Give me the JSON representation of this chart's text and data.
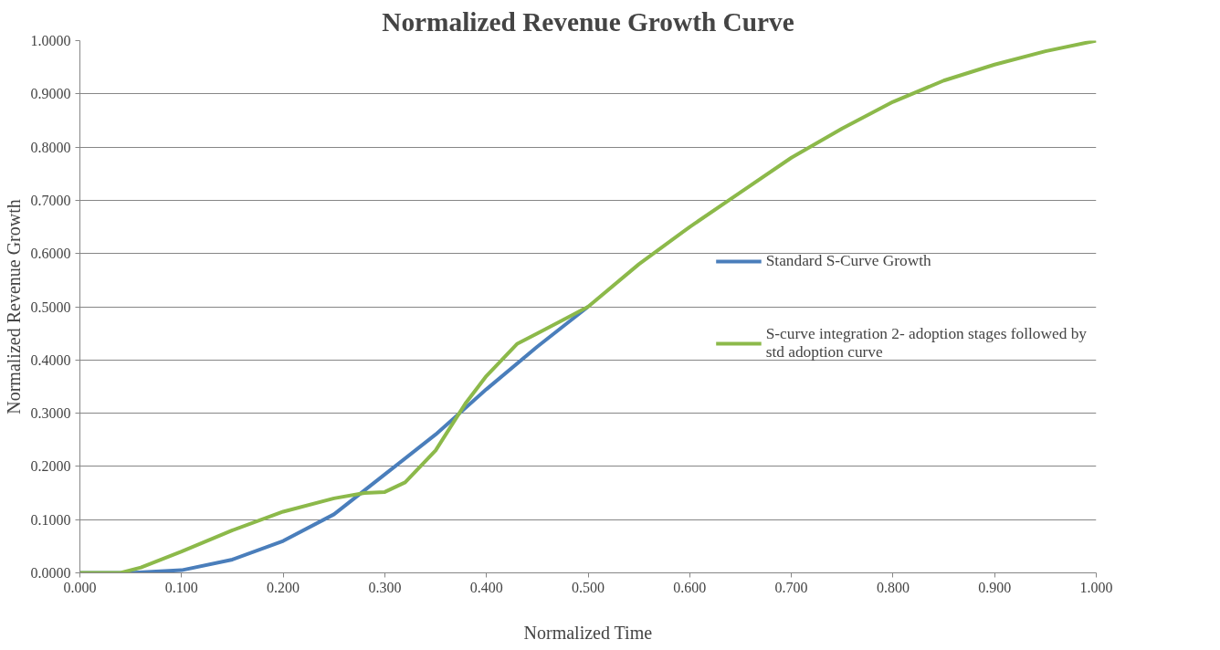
{
  "chart_data": {
    "type": "line",
    "title": "Normalized Revenue Growth Curve",
    "xlabel": "Normalized Time",
    "ylabel": "Normalized Revenue Growth",
    "series": [
      {
        "name": "Standard S-Curve Growth",
        "color": "#4a7ebb",
        "x": [
          0,
          0.05,
          0.1,
          0.15,
          0.2,
          0.25,
          0.3,
          0.35,
          0.4,
          0.45,
          0.5
        ],
        "values": [
          0,
          0,
          0.005,
          0.025,
          0.06,
          0.11,
          0.185,
          0.26,
          0.345,
          0.425,
          0.5
        ]
      },
      {
        "name": "S-curve integration 2- adoption stages followed by std adoption curve",
        "color": "#8cb94a",
        "x": [
          0,
          0.04,
          0.06,
          0.1,
          0.15,
          0.2,
          0.25,
          0.28,
          0.3,
          0.32,
          0.35,
          0.38,
          0.4,
          0.43,
          0.45,
          0.48,
          0.5,
          0.55,
          0.6,
          0.65,
          0.7,
          0.75,
          0.8,
          0.85,
          0.9,
          0.95,
          1.0
        ],
        "values": [
          0,
          0,
          0.01,
          0.04,
          0.08,
          0.115,
          0.14,
          0.15,
          0.152,
          0.17,
          0.23,
          0.32,
          0.37,
          0.43,
          0.45,
          0.48,
          0.5,
          0.58,
          0.65,
          0.715,
          0.78,
          0.835,
          0.885,
          0.925,
          0.955,
          0.98,
          1.0
        ]
      }
    ],
    "xlim": [
      0,
      1
    ],
    "ylim": [
      0,
      1
    ],
    "xticks": [
      {
        "value": 0,
        "label": "0.000"
      },
      {
        "value": 0.1,
        "label": "0.100"
      },
      {
        "value": 0.2,
        "label": "0.200"
      },
      {
        "value": 0.3,
        "label": "0.300"
      },
      {
        "value": 0.4,
        "label": "0.400"
      },
      {
        "value": 0.5,
        "label": "0.500"
      },
      {
        "value": 0.6,
        "label": "0.600"
      },
      {
        "value": 0.7,
        "label": "0.700"
      },
      {
        "value": 0.8,
        "label": "0.800"
      },
      {
        "value": 0.9,
        "label": "0.900"
      },
      {
        "value": 1,
        "label": "1.000"
      }
    ],
    "yticks": [
      {
        "value": 0,
        "label": "0.0000"
      },
      {
        "value": 0.1,
        "label": "0.1000"
      },
      {
        "value": 0.2,
        "label": "0.2000"
      },
      {
        "value": 0.3,
        "label": "0.3000"
      },
      {
        "value": 0.4,
        "label": "0.4000"
      },
      {
        "value": 0.5,
        "label": "0.5000"
      },
      {
        "value": 0.6,
        "label": "0.6000"
      },
      {
        "value": 0.7,
        "label": "0.7000"
      },
      {
        "value": 0.8,
        "label": "0.8000"
      },
      {
        "value": 0.9,
        "label": "0.9000"
      },
      {
        "value": 1,
        "label": "1.0000"
      }
    ],
    "grid": "y",
    "legend": "right",
    "marker": "none",
    "line_style": "solid"
  }
}
